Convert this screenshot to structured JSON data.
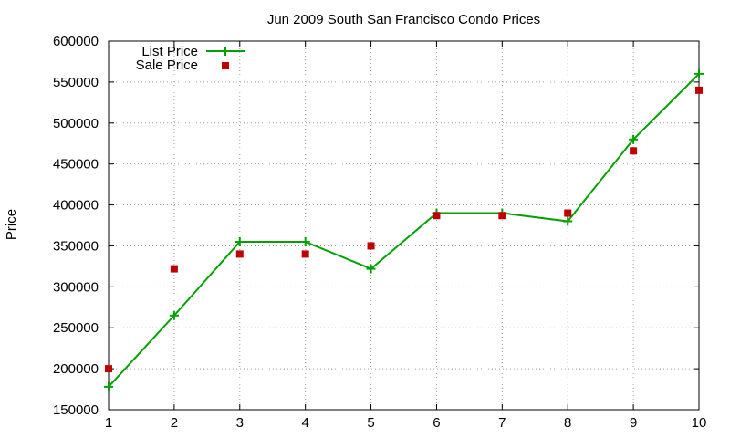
{
  "chart_data": {
    "type": "line",
    "title": "Jun 2009 South San Francisco Condo Prices",
    "xlabel": "",
    "ylabel": "Price",
    "x": [
      1,
      2,
      3,
      4,
      5,
      6,
      7,
      8,
      9,
      10
    ],
    "xlim": [
      1,
      10
    ],
    "ylim": [
      150000,
      600000
    ],
    "xticks": [
      1,
      2,
      3,
      4,
      5,
      6,
      7,
      8,
      9,
      10
    ],
    "yticks": [
      150000,
      200000,
      250000,
      300000,
      350000,
      400000,
      450000,
      500000,
      550000,
      600000
    ],
    "grid": true,
    "legend_position": "top-left",
    "series": [
      {
        "name": "List Price",
        "style": "line-with-plus-markers",
        "color": "#00a000",
        "values": [
          178000,
          265000,
          355000,
          355000,
          322000,
          390000,
          390000,
          380000,
          480000,
          560000
        ]
      },
      {
        "name": "Sale Price",
        "style": "square-markers",
        "color": "#c00000",
        "values": [
          200000,
          322000,
          340000,
          340000,
          350000,
          387000,
          387000,
          390000,
          466000,
          540000
        ]
      }
    ]
  }
}
